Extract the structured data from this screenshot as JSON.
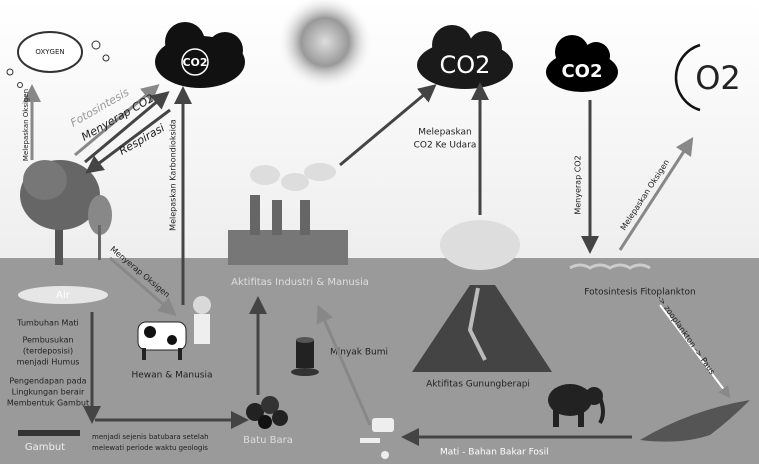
{
  "sky": {
    "oxygen_cloud": "OXYGEN",
    "co2_left": "CO2",
    "co2_center": "CO2",
    "co2_right": "CO2",
    "o2": "O2"
  },
  "arrows": {
    "release_oxygen_left": "Melepaskan Oksigen",
    "photosynthesis": "Fotosintesis",
    "absorb_co2_left": "Menyerap CO2",
    "respiration": "Respirasi",
    "release_co2_animals": "Melepaskan Karbondioksida",
    "release_co2_air": [
      "Melepaskan",
      "CO2 Ke Udara"
    ],
    "absorb_co2_right": "Menyerap CO2",
    "release_oxygen_right": "Melepaskan Oksigen",
    "absorb_oxygen": "Menyerap Oksigen",
    "food_chain": "-> zooplankton -> Paus"
  },
  "ground": {
    "water": "Air",
    "dead_plants": "Tumbuhan Mati",
    "decomposition": [
      "Pembusukan",
      "(terdeposisi)",
      "menjadi Humus"
    ],
    "deposition": [
      "Pengendapan pada",
      "Lingkungan berair",
      "Membentuk Gambut"
    ],
    "peat": "Gambut",
    "coalification": [
      "menjadi sejenis batubara setelah",
      "melewati periode waktu geologis"
    ],
    "coal": "Batu Bara",
    "animals_humans": "Hewan & Manusia",
    "industry": "Aktifitas Industri & Manusia",
    "oil": "Minyak Bumi",
    "volcano": "Aktifitas Gunungberapi",
    "phytoplankton": "Fotosintesis Fitoplankton",
    "fossil_fuel": "Mati - Bahan Bakar Fosil"
  }
}
